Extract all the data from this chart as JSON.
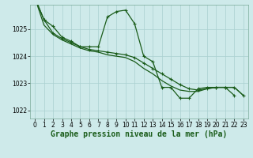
{
  "background_color": "#ceeaea",
  "grid_color": "#aad0d0",
  "line_color": "#1a5c1a",
  "marker_color": "#1a5c1a",
  "title": "Graphe pression niveau de la mer (hPa)",
  "title_fontsize": 7,
  "tick_fontsize": 5.5,
  "ylim": [
    1021.7,
    1025.9
  ],
  "xlim": [
    -0.5,
    23.5
  ],
  "yticks": [
    1022,
    1023,
    1024,
    1025
  ],
  "xticks": [
    0,
    1,
    2,
    3,
    4,
    5,
    6,
    7,
    8,
    9,
    10,
    11,
    12,
    13,
    14,
    15,
    16,
    17,
    18,
    19,
    20,
    21,
    22,
    23
  ],
  "series1": [
    1026.15,
    1025.35,
    1025.1,
    1024.7,
    1024.55,
    1024.35,
    1024.35,
    1024.35,
    1025.45,
    1025.65,
    1025.7,
    1025.2,
    1024.0,
    1023.8,
    1022.85,
    1022.85,
    1022.45,
    1022.45,
    1022.8,
    1022.85,
    1022.85,
    1022.85,
    1022.55
  ],
  "series2_x": [
    0,
    1,
    2,
    3,
    4,
    5,
    6,
    7,
    8,
    9,
    10,
    11,
    12,
    13,
    14,
    15,
    16,
    17,
    18,
    19,
    20,
    21,
    22,
    23
  ],
  "series2": [
    1026.15,
    1025.35,
    1024.85,
    1024.65,
    1024.5,
    1024.35,
    1024.25,
    1024.2,
    1024.15,
    1024.1,
    1024.05,
    1023.95,
    1023.75,
    1023.55,
    1023.35,
    1023.15,
    1022.95,
    1022.8,
    1022.75,
    1022.8,
    1022.85,
    1022.85,
    1022.85,
    1022.55
  ],
  "series3": [
    1026.15,
    1025.15,
    1024.8,
    1024.6,
    1024.45,
    1024.3,
    1024.2,
    1024.15,
    1024.05,
    1024.0,
    1023.95,
    1023.8,
    1023.55,
    1023.35,
    1023.1,
    1022.9,
    1022.75,
    1022.7,
    1022.7,
    1022.8,
    1022.85,
    1022.85,
    1022.85,
    1022.55
  ],
  "marker_size": 2.5,
  "linewidth": 0.9
}
